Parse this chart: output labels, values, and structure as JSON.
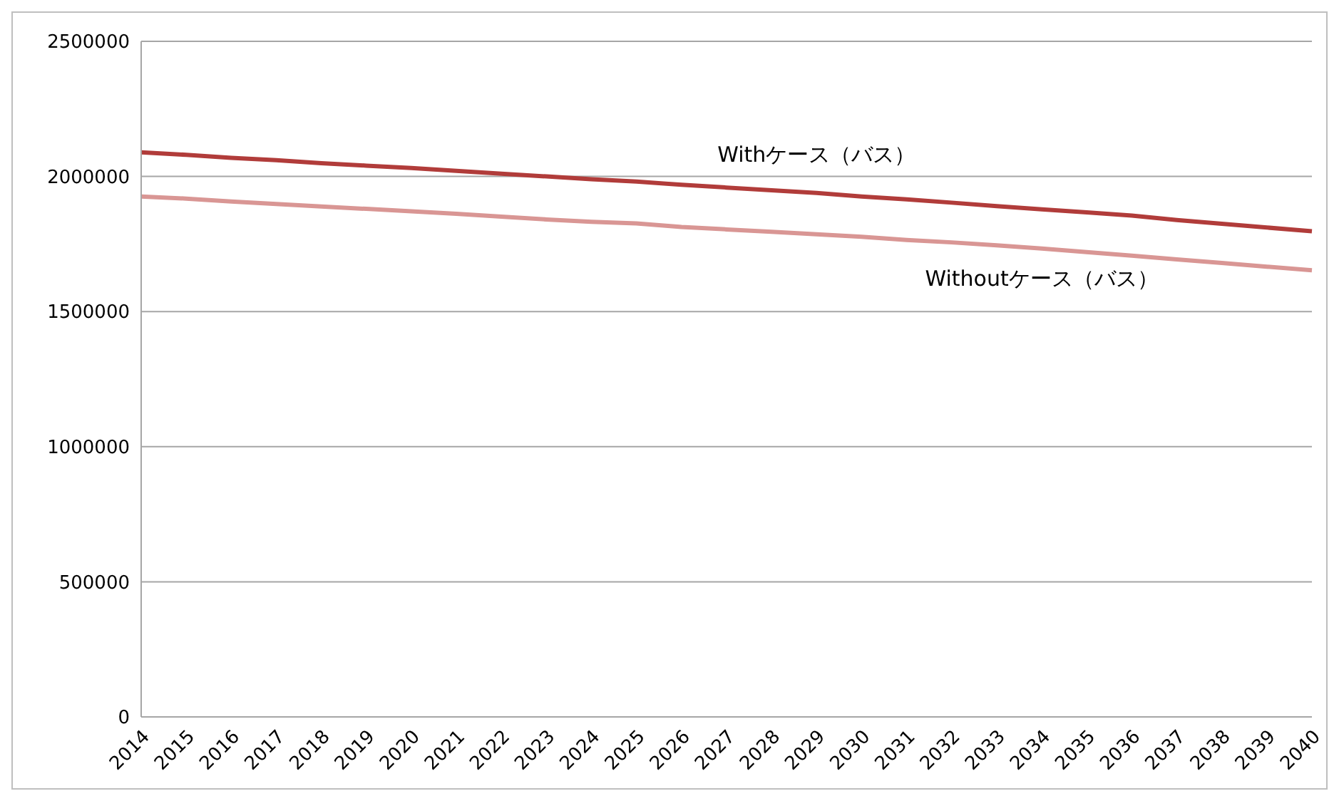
{
  "chart_data": {
    "type": "line",
    "categories": [
      "2014",
      "2015",
      "2016",
      "2017",
      "2018",
      "2019",
      "2020",
      "2021",
      "2022",
      "2023",
      "2024",
      "2025",
      "2026",
      "2027",
      "2028",
      "2029",
      "2030",
      "2031",
      "2032",
      "2033",
      "2034",
      "2035",
      "2036",
      "2037",
      "2038",
      "2039",
      "2040"
    ],
    "series": [
      {
        "name": "Withケース（バス）",
        "color": "#b13c3a",
        "values": [
          2089000,
          2080000,
          2069000,
          2060000,
          2049000,
          2040000,
          2031000,
          2021000,
          2010000,
          2000000,
          1990000,
          1981000,
          1969000,
          1959000,
          1949000,
          1939000,
          1926000,
          1915000,
          1903000,
          1890000,
          1878000,
          1867000,
          1855000,
          1839000,
          1825000,
          1811000,
          1797000
        ]
      },
      {
        "name": "Withoutケース（バス）",
        "color": "#d99694",
        "values": [
          1926000,
          1918000,
          1907000,
          1898000,
          1889000,
          1880000,
          1871000,
          1862000,
          1851000,
          1841000,
          1832000,
          1826000,
          1813000,
          1804000,
          1795000,
          1786000,
          1777000,
          1765000,
          1756000,
          1745000,
          1733000,
          1720000,
          1707000,
          1693000,
          1680000,
          1666000,
          1653000
        ]
      }
    ],
    "ylim": [
      0,
      2500000
    ],
    "yticks": [
      0,
      500000,
      1000000,
      1500000,
      2000000,
      2500000
    ],
    "grid": "y",
    "marker": "none"
  }
}
